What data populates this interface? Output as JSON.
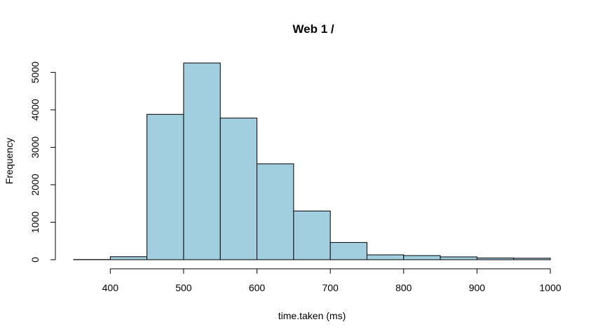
{
  "chart_data": {
    "type": "bar",
    "title": "Web 1 /",
    "xlabel": "time.taken (ms)",
    "ylabel": "Frequency",
    "bin_edges": [
      350,
      400,
      450,
      500,
      550,
      600,
      650,
      700,
      750,
      800,
      850,
      900,
      950,
      1000
    ],
    "values": [
      5,
      80,
      3880,
      5250,
      3780,
      2560,
      1300,
      460,
      130,
      110,
      75,
      45,
      40
    ],
    "xlim": [
      350,
      1000
    ],
    "ylim": [
      0,
      5250
    ],
    "x_ticks": [
      400,
      500,
      600,
      700,
      800,
      900,
      1000
    ],
    "y_ticks": [
      0,
      1000,
      2000,
      3000,
      4000,
      5000
    ],
    "bar_color": "#a2cfe0",
    "grid": false
  }
}
